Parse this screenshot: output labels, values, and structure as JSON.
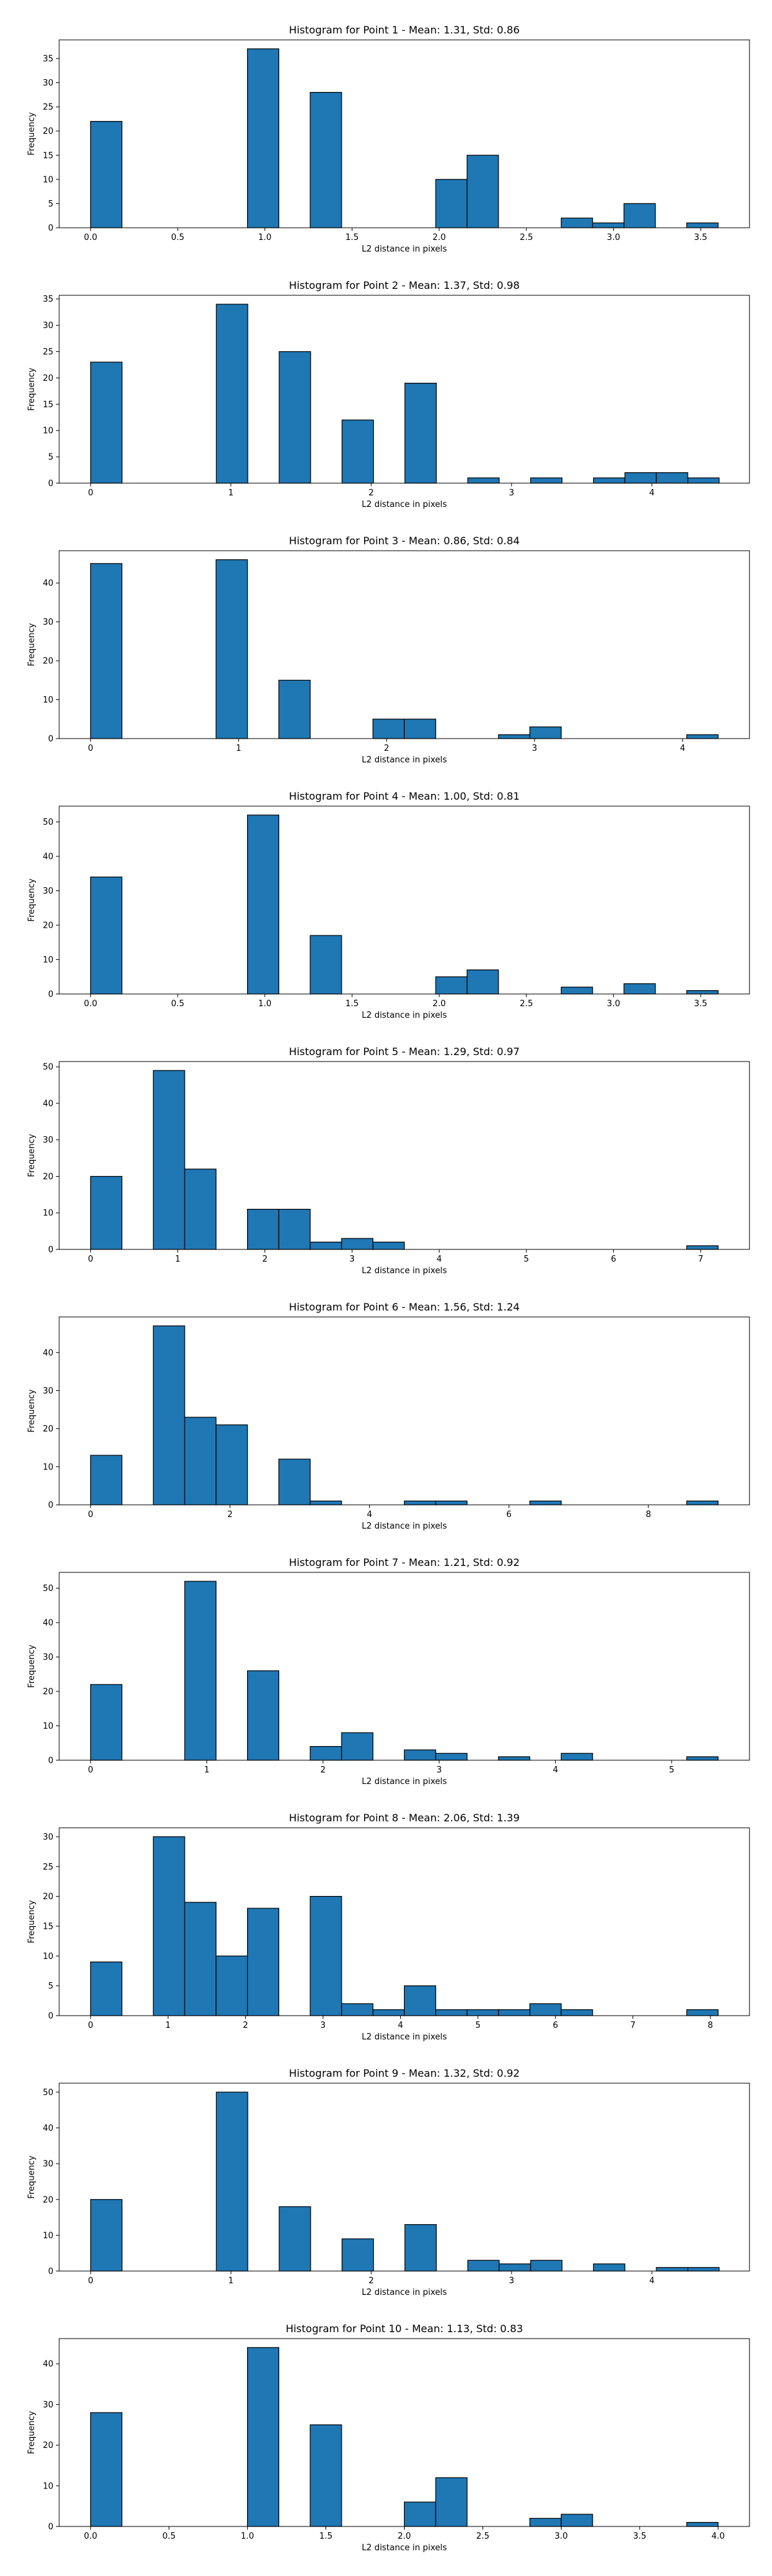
{
  "chart_data": [
    {
      "type": "bar",
      "title": "Histogram for Point 1 - Mean: 1.31, Std: 0.86",
      "xlabel": "L2 distance in pixels",
      "ylabel": "Frequency",
      "xlim": [
        -0.18,
        3.78
      ],
      "ylim": [
        0,
        38.85
      ],
      "xticks": [
        0,
        0.5,
        1,
        1.5,
        2,
        2.5,
        3,
        3.5
      ],
      "xtick_labels": [
        "0.0",
        "0.5",
        "1.0",
        "1.5",
        "2.0",
        "2.5",
        "3.0",
        "3.5"
      ],
      "yticks": [
        0,
        5,
        10,
        15,
        20,
        25,
        30,
        35
      ],
      "ytick_labels": [
        "0",
        "5",
        "10",
        "15",
        "20",
        "25",
        "30",
        "35"
      ],
      "bin_start": 0,
      "bin_width": 0.18,
      "values": [
        22,
        0,
        0,
        0,
        0,
        37,
        0,
        28,
        0,
        0,
        0,
        10,
        15,
        0,
        0,
        2,
        1,
        5,
        0,
        1
      ],
      "color": "#1f77b4",
      "edge_color": "#000000"
    },
    {
      "type": "bar",
      "title": "Histogram for Point 2 - Mean: 1.37, Std: 0.98",
      "xlabel": "L2 distance in pixels",
      "ylabel": "Frequency",
      "xlim": [
        -0.224,
        4.696
      ],
      "ylim": [
        0,
        35.7
      ],
      "xticks": [
        0,
        1,
        2,
        3,
        4
      ],
      "xtick_labels": [
        "0",
        "1",
        "2",
        "3",
        "4"
      ],
      "yticks": [
        0,
        5,
        10,
        15,
        20,
        25,
        30,
        35
      ],
      "ytick_labels": [
        "0",
        "5",
        "10",
        "15",
        "20",
        "25",
        "30",
        "35"
      ],
      "bin_start": 0,
      "bin_width": 0.224,
      "values": [
        23,
        0,
        0,
        0,
        34,
        0,
        25,
        0,
        12,
        0,
        19,
        0,
        1,
        0,
        1,
        0,
        1,
        2,
        2,
        1
      ],
      "color": "#1f77b4",
      "edge_color": "#000000"
    },
    {
      "type": "bar",
      "title": "Histogram for Point 3 - Mean: 0.86, Std: 0.84",
      "xlabel": "L2 distance in pixels",
      "ylabel": "Frequency",
      "xlim": [
        -0.212,
        4.452
      ],
      "ylim": [
        0,
        48.3
      ],
      "xticks": [
        0,
        1,
        2,
        3,
        4
      ],
      "xtick_labels": [
        "0",
        "1",
        "2",
        "3",
        "4"
      ],
      "yticks": [
        0,
        10,
        20,
        30,
        40
      ],
      "ytick_labels": [
        "0",
        "10",
        "20",
        "30",
        "40"
      ],
      "bin_start": 0,
      "bin_width": 0.212,
      "values": [
        45,
        0,
        0,
        0,
        46,
        0,
        15,
        0,
        0,
        5,
        5,
        0,
        0,
        1,
        3,
        0,
        0,
        0,
        0,
        1
      ],
      "color": "#1f77b4",
      "edge_color": "#000000"
    },
    {
      "type": "bar",
      "title": "Histogram for Point 4 - Mean: 1.00, Std: 0.81",
      "xlabel": "L2 distance in pixels",
      "ylabel": "Frequency",
      "xlim": [
        -0.18,
        3.78
      ],
      "ylim": [
        0,
        54.6
      ],
      "xticks": [
        0,
        0.5,
        1,
        1.5,
        2,
        2.5,
        3,
        3.5
      ],
      "xtick_labels": [
        "0.0",
        "0.5",
        "1.0",
        "1.5",
        "2.0",
        "2.5",
        "3.0",
        "3.5"
      ],
      "yticks": [
        0,
        10,
        20,
        30,
        40,
        50
      ],
      "ytick_labels": [
        "0",
        "10",
        "20",
        "30",
        "40",
        "50"
      ],
      "bin_start": 0,
      "bin_width": 0.18,
      "values": [
        34,
        0,
        0,
        0,
        0,
        52,
        0,
        17,
        0,
        0,
        0,
        5,
        7,
        0,
        0,
        2,
        0,
        3,
        0,
        1
      ],
      "color": "#1f77b4",
      "edge_color": "#000000"
    },
    {
      "type": "bar",
      "title": "Histogram for Point 5 - Mean: 1.29, Std: 0.97",
      "xlabel": "L2 distance in pixels",
      "ylabel": "Frequency",
      "xlim": [
        -0.36,
        7.56
      ],
      "ylim": [
        0,
        51.45
      ],
      "xticks": [
        0,
        1,
        2,
        3,
        4,
        5,
        6,
        7
      ],
      "xtick_labels": [
        "0",
        "1",
        "2",
        "3",
        "4",
        "5",
        "6",
        "7"
      ],
      "yticks": [
        0,
        10,
        20,
        30,
        40,
        50
      ],
      "ytick_labels": [
        "0",
        "10",
        "20",
        "30",
        "40",
        "50"
      ],
      "bin_start": 0,
      "bin_width": 0.36,
      "values": [
        20,
        0,
        49,
        22,
        0,
        11,
        11,
        2,
        3,
        2,
        0,
        0,
        0,
        0,
        0,
        0,
        0,
        0,
        0,
        1
      ],
      "color": "#1f77b4",
      "edge_color": "#000000"
    },
    {
      "type": "bar",
      "title": "Histogram for Point 6 - Mean: 1.56, Std: 1.24",
      "xlabel": "L2 distance in pixels",
      "ylabel": "Frequency",
      "xlim": [
        -0.45,
        9.45
      ],
      "ylim": [
        0,
        49.35
      ],
      "xticks": [
        0,
        2,
        4,
        6,
        8
      ],
      "xtick_labels": [
        "0",
        "2",
        "4",
        "6",
        "8"
      ],
      "yticks": [
        0,
        10,
        20,
        30,
        40
      ],
      "ytick_labels": [
        "0",
        "10",
        "20",
        "30",
        "40"
      ],
      "bin_start": 0,
      "bin_width": 0.45,
      "values": [
        13,
        0,
        47,
        23,
        21,
        0,
        12,
        1,
        0,
        0,
        1,
        1,
        0,
        0,
        1,
        0,
        0,
        0,
        0,
        1
      ],
      "color": "#1f77b4",
      "edge_color": "#000000"
    },
    {
      "type": "bar",
      "title": "Histogram for Point 7 - Mean: 1.21, Std: 0.92",
      "xlabel": "L2 distance in pixels",
      "ylabel": "Frequency",
      "xlim": [
        -0.27,
        5.67
      ],
      "ylim": [
        0,
        54.6
      ],
      "xticks": [
        0,
        1,
        2,
        3,
        4,
        5
      ],
      "xtick_labels": [
        "0",
        "1",
        "2",
        "3",
        "4",
        "5"
      ],
      "yticks": [
        0,
        10,
        20,
        30,
        40,
        50
      ],
      "ytick_labels": [
        "0",
        "10",
        "20",
        "30",
        "40",
        "50"
      ],
      "bin_start": 0,
      "bin_width": 0.27,
      "values": [
        22,
        0,
        0,
        52,
        0,
        26,
        0,
        4,
        8,
        0,
        3,
        2,
        0,
        1,
        0,
        2,
        0,
        0,
        0,
        1
      ],
      "color": "#1f77b4",
      "edge_color": "#000000"
    },
    {
      "type": "bar",
      "title": "Histogram for Point 8 - Mean: 2.06, Std: 1.39",
      "xlabel": "L2 distance in pixels",
      "ylabel": "Frequency",
      "xlim": [
        -0.405,
        8.505
      ],
      "ylim": [
        0,
        31.5
      ],
      "xticks": [
        0,
        1,
        2,
        3,
        4,
        5,
        6,
        7,
        8
      ],
      "xtick_labels": [
        "0",
        "1",
        "2",
        "3",
        "4",
        "5",
        "6",
        "7",
        "8"
      ],
      "yticks": [
        0,
        5,
        10,
        15,
        20,
        25,
        30
      ],
      "ytick_labels": [
        "0",
        "5",
        "10",
        "15",
        "20",
        "25",
        "30"
      ],
      "bin_start": 0,
      "bin_width": 0.405,
      "values": [
        9,
        0,
        30,
        19,
        10,
        18,
        0,
        20,
        2,
        1,
        5,
        1,
        1,
        1,
        2,
        1,
        0,
        0,
        0,
        1
      ],
      "color": "#1f77b4",
      "edge_color": "#000000"
    },
    {
      "type": "bar",
      "title": "Histogram for Point 9 - Mean: 1.32, Std: 0.92",
      "xlabel": "L2 distance in pixels",
      "ylabel": "Frequency",
      "xlim": [
        -0.224,
        4.696
      ],
      "ylim": [
        0,
        52.5
      ],
      "xticks": [
        0,
        1,
        2,
        3,
        4
      ],
      "xtick_labels": [
        "0",
        "1",
        "2",
        "3",
        "4"
      ],
      "yticks": [
        0,
        10,
        20,
        30,
        40,
        50
      ],
      "ytick_labels": [
        "0",
        "10",
        "20",
        "30",
        "40",
        "50"
      ],
      "bin_start": 0,
      "bin_width": 0.224,
      "values": [
        20,
        0,
        0,
        0,
        50,
        0,
        18,
        0,
        9,
        0,
        13,
        0,
        3,
        2,
        3,
        0,
        2,
        0,
        1,
        1
      ],
      "color": "#1f77b4",
      "edge_color": "#000000"
    },
    {
      "type": "bar",
      "title": "Histogram for Point 10 - Mean: 1.13, Std: 0.83",
      "xlabel": "L2 distance in pixels",
      "ylabel": "Frequency",
      "xlim": [
        -0.2,
        4.2
      ],
      "ylim": [
        0,
        46.2
      ],
      "xticks": [
        0,
        0.5,
        1,
        1.5,
        2,
        2.5,
        3,
        3.5,
        4
      ],
      "xtick_labels": [
        "0.0",
        "0.5",
        "1.0",
        "1.5",
        "2.0",
        "2.5",
        "3.0",
        "3.5",
        "4.0"
      ],
      "yticks": [
        0,
        10,
        20,
        30,
        40
      ],
      "ytick_labels": [
        "0",
        "10",
        "20",
        "30",
        "40"
      ],
      "bin_start": 0,
      "bin_width": 0.2,
      "values": [
        28,
        0,
        0,
        0,
        0,
        44,
        0,
        25,
        0,
        0,
        6,
        12,
        0,
        0,
        2,
        3,
        0,
        0,
        0,
        1
      ],
      "color": "#1f77b4",
      "edge_color": "#000000"
    }
  ]
}
